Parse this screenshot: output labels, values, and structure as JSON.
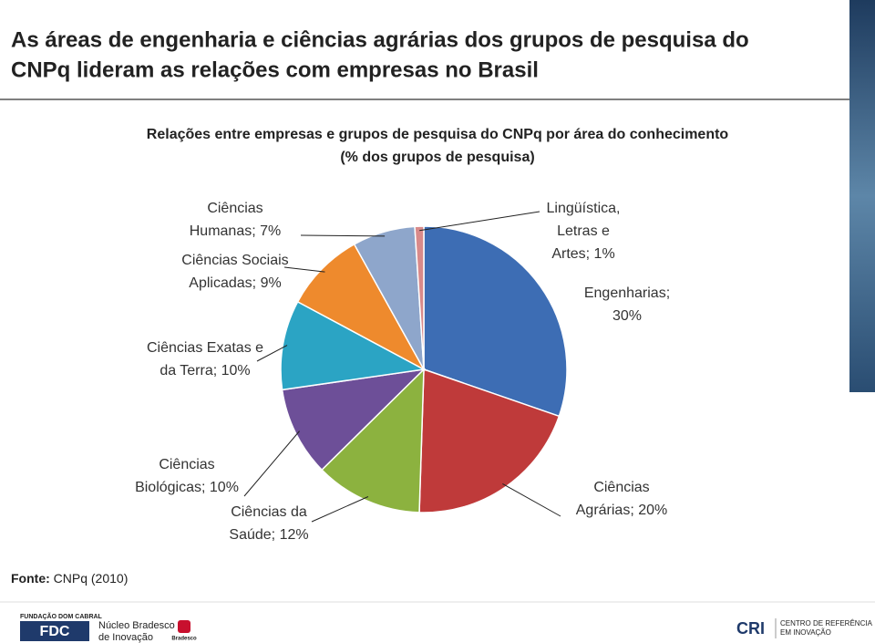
{
  "header": {
    "title": [
      "As áreas de engenharia e ciências agrárias dos grupos de pesquisa do",
      "CNPq lideram as relações com empresas no Brasil"
    ]
  },
  "chart_data": {
    "type": "pie",
    "title": [
      "Relações entre empresas e grupos de pesquisa do CNPq por área do conhecimento",
      "(% dos grupos de pesquisa)"
    ],
    "values": [
      30,
      20,
      12,
      10,
      10,
      9,
      7,
      1
    ],
    "value_labels": [
      [
        "Engenharias;",
        "30%"
      ],
      [
        "Ciências",
        "Agrárias; 20%"
      ],
      [
        "Ciências da",
        "Saúde; 12%"
      ],
      [
        "Ciências",
        "Biológicas; 10%"
      ],
      [
        "Ciências Exatas e",
        "da Terra; 10%"
      ],
      [
        "Ciências Sociais",
        "Aplicadas; 9%"
      ],
      [
        "Ciências",
        "Humanas; 7%"
      ],
      [
        "Lingüística,",
        "Letras e",
        "Artes; 1%"
      ]
    ],
    "colors": [
      "#3d6db4",
      "#bf3a3a",
      "#8cb23f",
      "#6d4f98",
      "#2ba4c4",
      "#ee8a2d",
      "#8ea6cb",
      "#d98a8a"
    ]
  },
  "footer": {
    "source_label": "Fonte:",
    "source": "CNPq (2010)",
    "logos": {
      "fdc_top": "FUNDAÇÃO DOM CABRAL",
      "fdc": "FDC",
      "nucleo": [
        "Núcleo Bradesco",
        "de Inovação"
      ],
      "bradesco": "Bradesco",
      "cri": "CRI",
      "cri_text": [
        "CENTRO DE REFERÊNCIA",
        "EM INOVAÇÃO"
      ]
    }
  }
}
